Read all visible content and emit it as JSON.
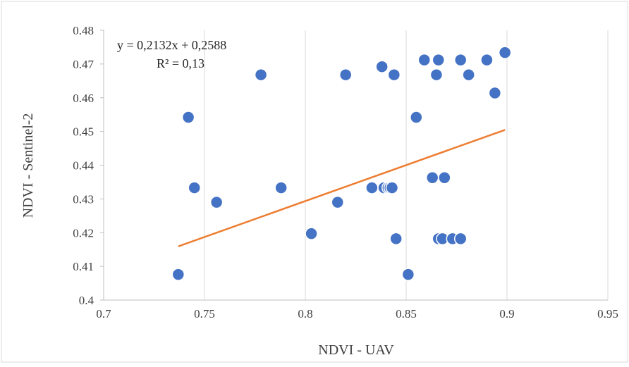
{
  "chart_data": {
    "type": "scatter",
    "xlabel": "NDVI - UAV",
    "ylabel": "NDVI - Sentinel-2",
    "xlim": [
      0.7,
      0.95
    ],
    "ylim": [
      0.4,
      0.48
    ],
    "x_ticks": [
      "0.7",
      "0.75",
      "0.8",
      "0.85",
      "0.9",
      "0.95"
    ],
    "y_ticks": [
      "0.4",
      "0.41",
      "0.42",
      "0.43",
      "0.44",
      "0.45",
      "0.46",
      "0.47",
      "0.48"
    ],
    "x_tick_values": [
      0.7,
      0.75,
      0.8,
      0.85,
      0.9,
      0.95
    ],
    "y_tick_values": [
      0.4,
      0.41,
      0.42,
      0.43,
      0.44,
      0.45,
      0.46,
      0.47,
      0.48
    ],
    "grid": "vertical",
    "point_color": "#4472C4",
    "trendline_color": "#ED7D31",
    "points": [
      {
        "x": 0.737,
        "y": 0.4076
      },
      {
        "x": 0.742,
        "y": 0.4542
      },
      {
        "x": 0.745,
        "y": 0.4333
      },
      {
        "x": 0.756,
        "y": 0.429
      },
      {
        "x": 0.778,
        "y": 0.4668
      },
      {
        "x": 0.788,
        "y": 0.4333
      },
      {
        "x": 0.803,
        "y": 0.4197
      },
      {
        "x": 0.816,
        "y": 0.429
      },
      {
        "x": 0.82,
        "y": 0.4668
      },
      {
        "x": 0.833,
        "y": 0.4333
      },
      {
        "x": 0.838,
        "y": 0.4692
      },
      {
        "x": 0.839,
        "y": 0.4333
      },
      {
        "x": 0.841,
        "y": 0.4333
      },
      {
        "x": 0.842,
        "y": 0.4333
      },
      {
        "x": 0.843,
        "y": 0.4333
      },
      {
        "x": 0.844,
        "y": 0.4668
      },
      {
        "x": 0.845,
        "y": 0.4182
      },
      {
        "x": 0.851,
        "y": 0.4076
      },
      {
        "x": 0.855,
        "y": 0.4542
      },
      {
        "x": 0.859,
        "y": 0.4712
      },
      {
        "x": 0.863,
        "y": 0.4363
      },
      {
        "x": 0.865,
        "y": 0.4668
      },
      {
        "x": 0.866,
        "y": 0.4712
      },
      {
        "x": 0.866,
        "y": 0.4182
      },
      {
        "x": 0.868,
        "y": 0.4182
      },
      {
        "x": 0.869,
        "y": 0.4363
      },
      {
        "x": 0.873,
        "y": 0.4182
      },
      {
        "x": 0.877,
        "y": 0.4712
      },
      {
        "x": 0.877,
        "y": 0.4182
      },
      {
        "x": 0.881,
        "y": 0.4668
      },
      {
        "x": 0.89,
        "y": 0.4712
      },
      {
        "x": 0.894,
        "y": 0.4614
      },
      {
        "x": 0.899,
        "y": 0.4734
      }
    ],
    "trendline": {
      "slope": 0.2132,
      "intercept": 0.2588,
      "x_range": [
        0.737,
        0.899
      ]
    },
    "annotations": {
      "equation": "y = 0,2132x + 0,2588",
      "r_squared": "R² = 0,13"
    }
  }
}
